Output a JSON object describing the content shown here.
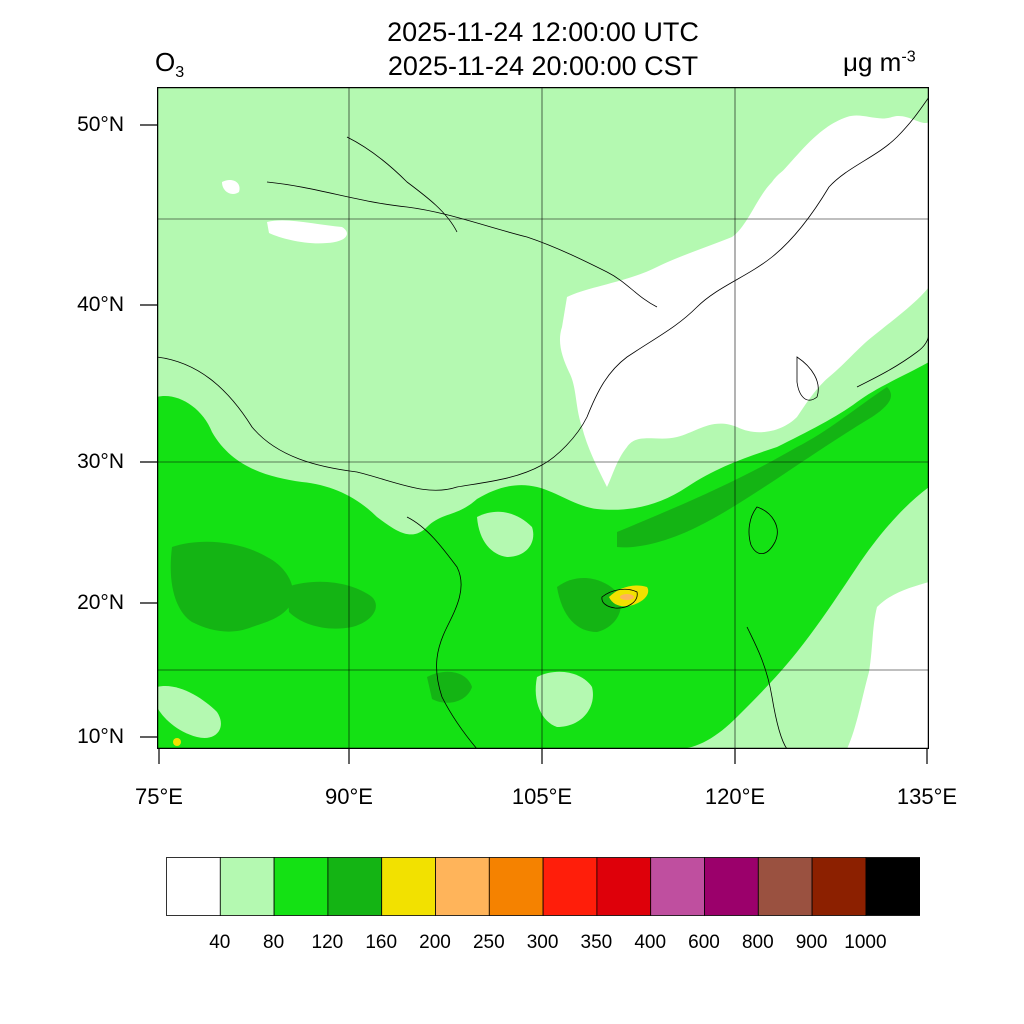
{
  "title": {
    "utc_time": "2025-11-24 12:00:00 UTC",
    "local_time": "2025-11-24 20:00:00 CST"
  },
  "variable": {
    "name": "O",
    "subscript": "3"
  },
  "units": {
    "base": "μg m",
    "exponent": "-3"
  },
  "lat_labels": [
    "50°N",
    "40°N",
    "30°N",
    "20°N",
    "10°N"
  ],
  "lon_labels": [
    "75°E",
    "90°E",
    "105°E",
    "120°E",
    "135°E"
  ],
  "colorbar": {
    "colors": [
      "#ffffff",
      "#b4f9b1",
      "#14e114",
      "#14b414",
      "#f2e100",
      "#ffb45a",
      "#f58200",
      "#ff1e0a",
      "#de000a",
      "#bf4f9f",
      "#9b006b",
      "#9a5140",
      "#8c2000",
      "#000000"
    ],
    "labels": [
      "40",
      "80",
      "120",
      "160",
      "200",
      "250",
      "300",
      "350",
      "400",
      "600",
      "800",
      "900",
      "1000"
    ]
  },
  "palette": {
    "frame": "#000000",
    "border": "#000000",
    "grid": "#000000"
  }
}
